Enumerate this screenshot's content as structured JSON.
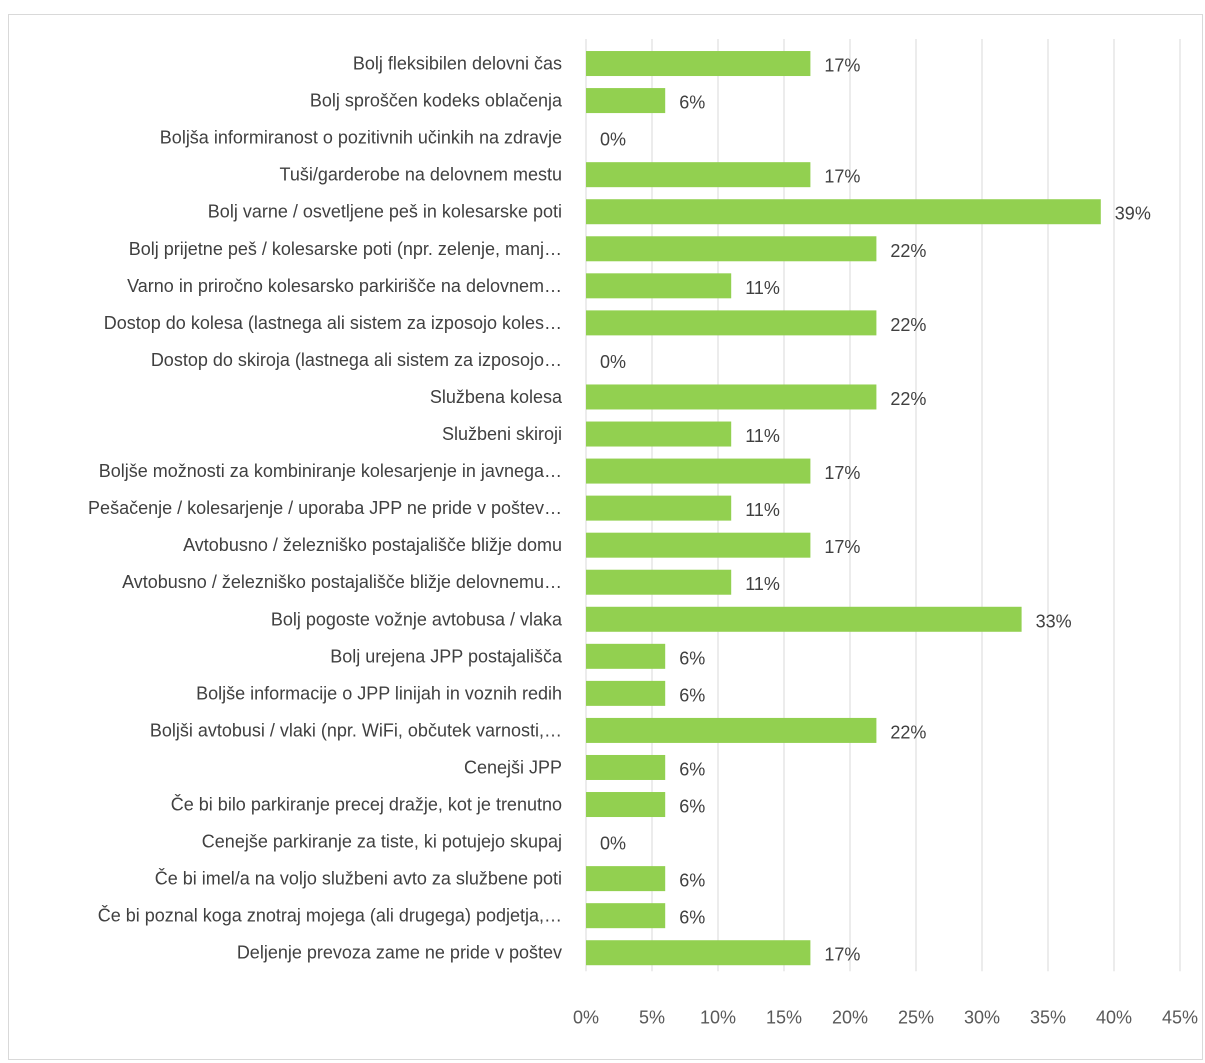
{
  "chart_data": {
    "type": "bar",
    "orientation": "horizontal",
    "categories": [
      "Bolj fleksibilen delovni čas",
      "Bolj sproščen kodeks oblačenja",
      "Boljša informiranost o pozitivnih učinkih na zdravje",
      "Tuši/garderobe na delovnem mestu",
      "Bolj varne / osvetljene peš in kolesarske poti",
      "Bolj prijetne peš / kolesarske poti (npr. zelenje, manj…",
      "Varno in priročno kolesarsko parkirišče na delovnem…",
      "Dostop do kolesa (lastnega ali sistem za izposojo koles…",
      "Dostop do skiroja (lastnega ali sistem za izposojo…",
      "Službena kolesa",
      "Službeni skiroji",
      "Boljše možnosti za kombiniranje kolesarjenje in javnega…",
      "Pešačenje / kolesarjenje / uporaba JPP ne pride v poštev…",
      "Avtobusno / železniško postajališče bližje domu",
      "Avtobusno / železniško postajališče bližje delovnemu…",
      "Bolj pogoste vožnje avtobusa / vlaka",
      "Bolj urejena JPP postajališča",
      "Boljše informacije o JPP linijah in voznih redih",
      "Boljši avtobusi / vlaki (npr. WiFi, občutek varnosti,…",
      "Cenejši JPP",
      "Če bi bilo parkiranje precej dražje, kot je trenutno",
      "Cenejše parkiranje za tiste, ki potujejo skupaj",
      "Če bi imel/a na voljo službeni avto za službene poti",
      "Če bi poznal koga znotraj mojega (ali drugega) podjetja,…",
      "Deljenje prevoza zame ne pride v poštev"
    ],
    "values": [
      17,
      6,
      0,
      17,
      39,
      22,
      11,
      22,
      0,
      22,
      11,
      17,
      11,
      17,
      11,
      33,
      6,
      6,
      22,
      6,
      6,
      0,
      6,
      6,
      17
    ],
    "value_labels": [
      "17%",
      "6%",
      "0%",
      "17%",
      "39%",
      "22%",
      "11%",
      "22%",
      "0%",
      "22%",
      "11%",
      "17%",
      "11%",
      "17%",
      "11%",
      "33%",
      "6%",
      "6%",
      "22%",
      "6%",
      "6%",
      "0%",
      "6%",
      "6%",
      "17%"
    ],
    "x_ticks": [
      "0%",
      "5%",
      "10%",
      "15%",
      "20%",
      "25%",
      "30%",
      "35%",
      "40%",
      "45%"
    ],
    "xlim": [
      0,
      45
    ],
    "title": "",
    "xlabel": "",
    "ylabel": "",
    "grid": "vertical",
    "legend": "none",
    "colors": {
      "bar": "#92d050",
      "grid": "#d9d9d9",
      "text": "#404040"
    }
  }
}
